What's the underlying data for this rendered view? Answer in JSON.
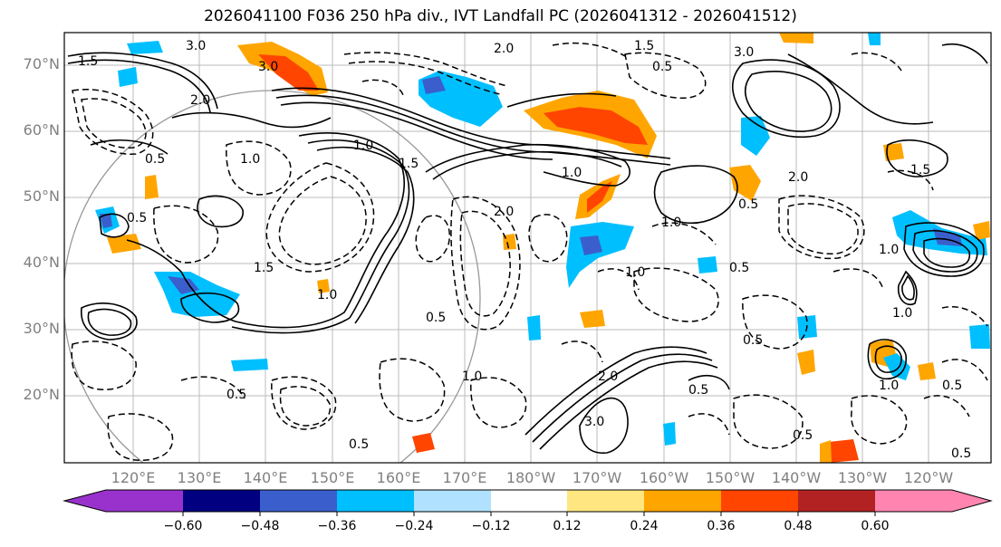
{
  "title": "2026041100 F036 250 hPa div., IVT Landfall PC (2026041312 - 2026041512)",
  "lat_labels": [
    "70°N",
    "60°N",
    "50°N",
    "40°N",
    "30°N",
    "20°N"
  ],
  "lon_labels": [
    "120°E",
    "130°E",
    "140°E",
    "150°E",
    "160°E",
    "170°E",
    "180°W",
    "170°W",
    "160°W",
    "150°W",
    "140°W",
    "130°W",
    "120°W"
  ],
  "colorbar": {
    "colors": [
      "#9932CC",
      "#000080",
      "#3A5FCD",
      "#00BFFF",
      "#B0E2FF",
      "#FFFFFF",
      "#FFE680",
      "#FFA500",
      "#FF4500",
      "#B22222",
      "#FF85B0"
    ],
    "ticks": [
      "−0.60",
      "−0.48",
      "−0.36",
      "−0.24",
      "−0.12",
      "0.12",
      "0.24",
      "0.36",
      "0.48",
      "0.60"
    ]
  },
  "contour_labels": [
    "3.0",
    "1.5",
    "2.0",
    "1.0",
    "0.5",
    "3.0",
    "2.0",
    "1.5",
    "0.5",
    "1.0",
    "1.5",
    "2.0",
    "1.0",
    "0.5",
    "1.5",
    "1.0",
    "0.5",
    "1.0",
    "2.0",
    "3.0",
    "0.5",
    "0.5",
    "1.0",
    "1.5",
    "1.0",
    "0.5",
    "2.0",
    "3.0",
    "0.5",
    "1.0",
    "0.5",
    "1.0",
    "0.5",
    "0.5",
    "1.0",
    "0.5",
    "0.5"
  ]
}
